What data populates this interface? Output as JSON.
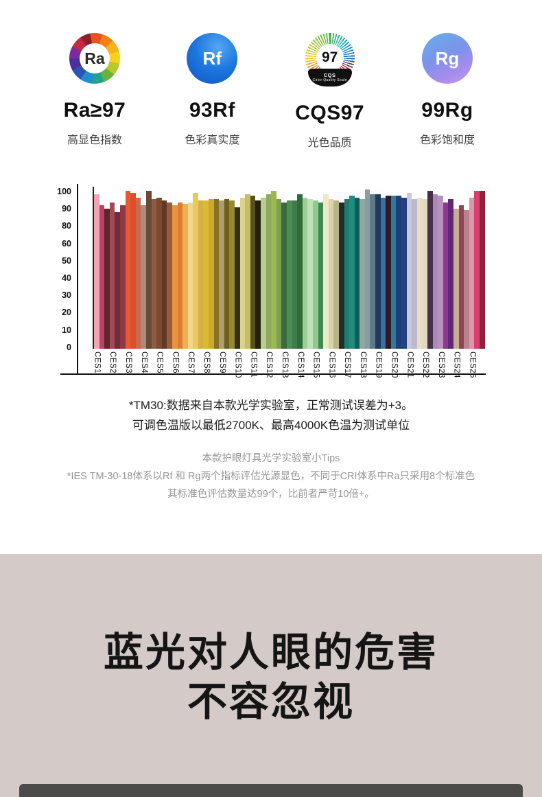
{
  "badges": [
    {
      "icon": "ra-color-wheel-icon",
      "icon_text": "Ra",
      "value": "Ra≥97",
      "label": "高显色指数"
    },
    {
      "icon": "rf-circle-icon",
      "icon_text": "Rf",
      "value": "93Rf",
      "label": "色彩真实度"
    },
    {
      "icon": "cqs-burst-icon",
      "icon_text": "97",
      "icon_sub": "CQS",
      "icon_sub2": "Color Quality Scale",
      "value": "CQS97",
      "label": "光色品质"
    },
    {
      "icon": "rg-circle-icon",
      "icon_text": "Rg",
      "value": "99Rg",
      "label": "色彩饱和度"
    }
  ],
  "chart_data": {
    "type": "bar",
    "title": "",
    "xlabel": "",
    "ylabel": "",
    "ylim": [
      0,
      100
    ],
    "grid": false,
    "legend": false,
    "y_ticks": [
      "100",
      "90",
      "80",
      "60",
      "50",
      "40",
      "30",
      "20",
      "10",
      "0"
    ],
    "categories": [
      "CES1",
      "CES2",
      "CES3",
      "CES4",
      "CES5",
      "CES6",
      "CES7",
      "CES8",
      "CES9",
      "CES10",
      "CES11",
      "CES12",
      "CES13",
      "CES14",
      "CES15",
      "CES16",
      "CES17",
      "CES18",
      "CES19",
      "CES20",
      "CES21",
      "CES22",
      "CES23",
      "CES24",
      "CES25"
    ],
    "bars_per_category": 3,
    "bars": [
      {
        "v": 97,
        "c": "#F2A4B4"
      },
      {
        "v": 90,
        "c": "#BA4363"
      },
      {
        "v": 88,
        "c": "#5E2530"
      },
      {
        "v": 92,
        "c": "#A14A56"
      },
      {
        "v": 86,
        "c": "#6E2F38"
      },
      {
        "v": 90,
        "c": "#8E3A44"
      },
      {
        "v": 99,
        "c": "#E55A35"
      },
      {
        "v": 98,
        "c": "#DE4E2A"
      },
      {
        "v": 95,
        "c": "#C96A52"
      },
      {
        "v": 90,
        "c": "#AB8C7C"
      },
      {
        "v": 99,
        "c": "#6B4937"
      },
      {
        "v": 94,
        "c": "#8C5C44"
      },
      {
        "v": 95,
        "c": "#7C4A31"
      },
      {
        "v": 93,
        "c": "#5E3A26"
      },
      {
        "v": 92,
        "c": "#9A5A3C"
      },
      {
        "v": 90,
        "c": "#E8933E"
      },
      {
        "v": 92,
        "c": "#DD7E2F"
      },
      {
        "v": 91,
        "c": "#EFAF55"
      },
      {
        "v": 92,
        "c": "#EED88C"
      },
      {
        "v": 98,
        "c": "#E9C95F"
      },
      {
        "v": 93,
        "c": "#D9AE45"
      },
      {
        "v": 93,
        "c": "#D9BB33"
      },
      {
        "v": 94,
        "c": "#CBA92C"
      },
      {
        "v": 94,
        "c": "#877222"
      },
      {
        "v": 93,
        "c": "#AD9E70"
      },
      {
        "v": 94,
        "c": "#6E6119"
      },
      {
        "v": 93,
        "c": "#968A2E"
      },
      {
        "v": 89,
        "c": "#37301A"
      },
      {
        "v": 95,
        "c": "#D8D28A"
      },
      {
        "v": 97,
        "c": "#C5BE66"
      },
      {
        "v": 96,
        "c": "#56511F"
      },
      {
        "v": 93,
        "c": "#232110"
      },
      {
        "v": 95,
        "c": "#B9CD8D"
      },
      {
        "v": 97,
        "c": "#8FA95E"
      },
      {
        "v": 99,
        "c": "#9CB94E"
      },
      {
        "v": 94,
        "c": "#7E9E52"
      },
      {
        "v": 92,
        "c": "#3A6B40"
      },
      {
        "v": 93,
        "c": "#4F8D54"
      },
      {
        "v": 93,
        "c": "#3F7D48"
      },
      {
        "v": 97,
        "c": "#2E6B39"
      },
      {
        "v": 95,
        "c": "#9ECD98"
      },
      {
        "v": 94,
        "c": "#BEE2B6"
      },
      {
        "v": 93,
        "c": "#8FCB90"
      },
      {
        "v": 92,
        "c": "#3E8A51"
      },
      {
        "v": 97,
        "c": "#EDE8C9"
      },
      {
        "v": 94,
        "c": "#D9D3A9"
      },
      {
        "v": 93,
        "c": "#B9B38A"
      },
      {
        "v": 92,
        "c": "#1F2F29"
      },
      {
        "v": 94,
        "c": "#1F7B6F"
      },
      {
        "v": 96,
        "c": "#1F8B81"
      },
      {
        "v": 95,
        "c": "#0F5F57"
      },
      {
        "v": 94,
        "c": "#8BA9A0"
      },
      {
        "v": 100,
        "c": "#8A9CA1"
      },
      {
        "v": 97,
        "c": "#5E7B89"
      },
      {
        "v": 97,
        "c": "#1F3B5F"
      },
      {
        "v": 95,
        "c": "#3F6F9F"
      },
      {
        "v": 96,
        "c": "#2F1B23"
      },
      {
        "v": 96,
        "c": "#2F7B9F"
      },
      {
        "v": 96,
        "c": "#1F3F7B"
      },
      {
        "v": 95,
        "c": "#24427F"
      },
      {
        "v": 98,
        "c": "#CCC7DB"
      },
      {
        "v": 94,
        "c": "#BDB9CC"
      },
      {
        "v": 95,
        "c": "#E9DFC7"
      },
      {
        "v": 94,
        "c": "#E4DAC2"
      },
      {
        "v": 99,
        "c": "#473049"
      },
      {
        "v": 97,
        "c": "#A989B9"
      },
      {
        "v": 96,
        "c": "#B991C1"
      },
      {
        "v": 92,
        "c": "#8E3A89"
      },
      {
        "v": 94,
        "c": "#5F2879"
      },
      {
        "v": 88,
        "c": "#C9AE8E"
      },
      {
        "v": 90,
        "c": "#8F4559"
      },
      {
        "v": 87,
        "c": "#B98189"
      },
      {
        "v": 95,
        "c": "#D999A9"
      },
      {
        "v": 99,
        "c": "#D93F6F"
      },
      {
        "v": 99,
        "c": "#8F2139"
      }
    ]
  },
  "notes_primary": [
    "*TM30:数据来自本款光学实验室，正常测试误差为+3。",
    "可调色温版以最低2700K、最高4000K色温为测试单位"
  ],
  "notes_secondary": [
    "本款护眼灯具光学实验室小Tips",
    "*IES TM-30-18体系以Rf 和 Rg两个指标评估光源显色，不同于CRI体系中Ra只采用8个标准色",
    "其标准色评估数量达99个，比前者严苛10倍+。"
  ],
  "section_heading": {
    "line1": "蓝光对人眼的危害",
    "line2": "不容忽视"
  },
  "colors": {
    "page_bg": "#FFFFFF",
    "beige_section_bg": "#D4CBC8",
    "dark_card_bg": "#4D4A4A",
    "axis": "#111111",
    "heading_text": "#151515",
    "secondary_note_text": "#969696",
    "rf_badge_blue": "#1E78E0",
    "rg_badge_violet": "#A78CEC"
  }
}
